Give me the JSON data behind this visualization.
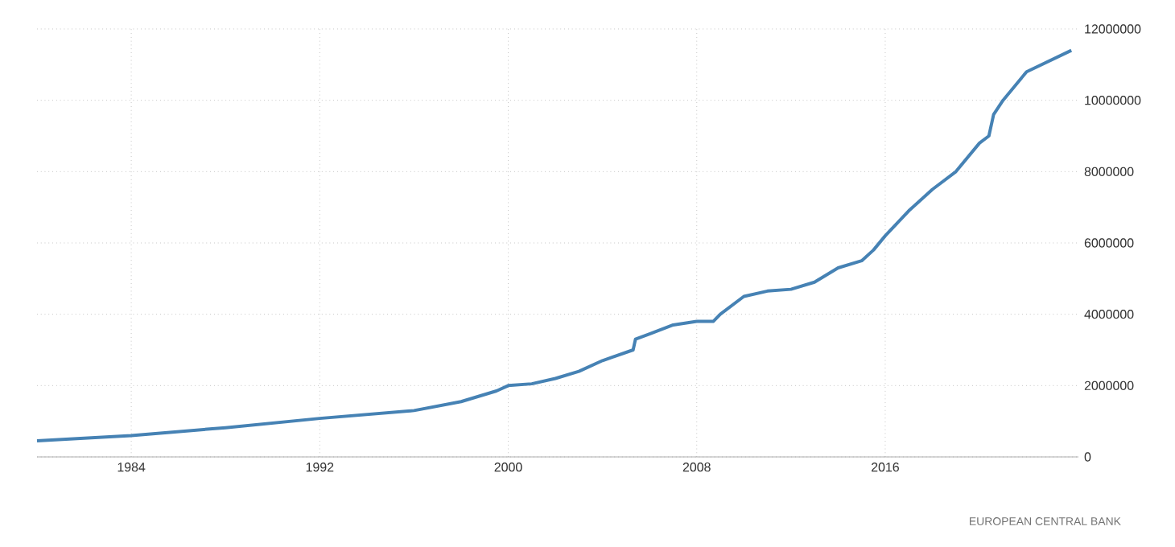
{
  "chart_data": {
    "type": "line",
    "x": [
      1980,
      1984,
      1988,
      1992,
      1996,
      1998,
      1999.5,
      2000,
      2001,
      2002,
      2003,
      2004,
      2005.3,
      2005.4,
      2006,
      2007,
      2008,
      2008.7,
      2009,
      2010,
      2011,
      2012,
      2013,
      2014,
      2015,
      2015.5,
      2016,
      2017,
      2018,
      2019,
      2020,
      2020.4,
      2020.6,
      2021,
      2022,
      2023.9
    ],
    "series": [
      {
        "color": "#4682b4",
        "values": [
          450000,
          600000,
          820000,
          1080000,
          1300000,
          1550000,
          1850000,
          2000000,
          2050000,
          2200000,
          2400000,
          2700000,
          3000000,
          3300000,
          3450000,
          3700000,
          3800000,
          3800000,
          4000000,
          4500000,
          4650000,
          4700000,
          4900000,
          5300000,
          5500000,
          5800000,
          6200000,
          6900000,
          7500000,
          8000000,
          8800000,
          9000000,
          9600000,
          10000000,
          10800000,
          11400000
        ]
      }
    ],
    "xlim": [
      1980,
      2024.2
    ],
    "ylim": [
      0,
      12000000
    ],
    "xticks": [
      1984,
      1992,
      2000,
      2008,
      2016
    ],
    "yticks": [
      0,
      2000000,
      4000000,
      6000000,
      8000000,
      10000000,
      12000000
    ],
    "grid": true,
    "marker": "none",
    "line_style": "solid",
    "annotations": [
      "EUROPEAN CENTRAL BANK"
    ]
  }
}
